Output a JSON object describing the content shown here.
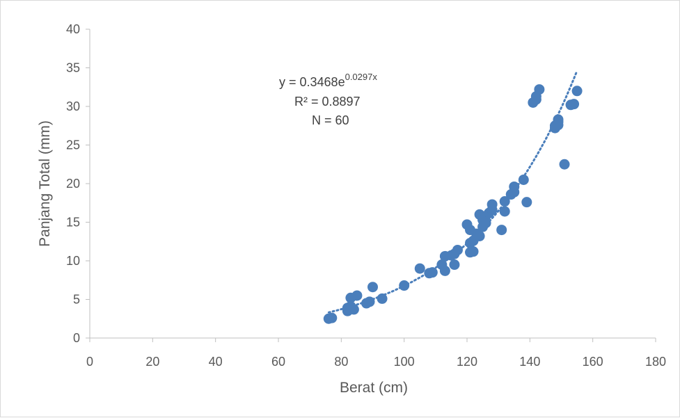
{
  "chart_data": {
    "type": "scatter",
    "xlabel": "Berat (cm)",
    "ylabel": "Panjang Total (mm)",
    "xlim": [
      0,
      180
    ],
    "ylim": [
      0,
      40
    ],
    "xticks": [
      0,
      20,
      40,
      60,
      80,
      100,
      120,
      140,
      160,
      180
    ],
    "yticks": [
      0,
      5,
      10,
      15,
      20,
      25,
      30,
      35,
      40
    ],
    "grid": false,
    "legend": "none",
    "point_color": "#4a7ebb",
    "trendline": {
      "type": "exponential",
      "a": 0.3468,
      "b": 0.0297,
      "x_range": [
        76,
        155
      ],
      "style": "dotted",
      "color": "#4a7ebb",
      "equation_base": "y = 0.3468e",
      "equation_exponent": "0.0297x",
      "r2_text": "R² = 0.8897",
      "n_text": "N = 60"
    },
    "points": [
      [
        76,
        2.5
      ],
      [
        77,
        2.6
      ],
      [
        82,
        3.5
      ],
      [
        82,
        3.9
      ],
      [
        83,
        4.1
      ],
      [
        83,
        5.2
      ],
      [
        84,
        3.7
      ],
      [
        85,
        5.5
      ],
      [
        88,
        4.5
      ],
      [
        89,
        4.7
      ],
      [
        90,
        6.6
      ],
      [
        93,
        5.1
      ],
      [
        100,
        6.8
      ],
      [
        105,
        9.0
      ],
      [
        108,
        8.4
      ],
      [
        109,
        8.5
      ],
      [
        112,
        9.5
      ],
      [
        113,
        8.7
      ],
      [
        113,
        10.6
      ],
      [
        115,
        10.7
      ],
      [
        116,
        9.5
      ],
      [
        116,
        10.9
      ],
      [
        117,
        11.4
      ],
      [
        120,
        14.7
      ],
      [
        121,
        11.1
      ],
      [
        121,
        12.3
      ],
      [
        121,
        14.0
      ],
      [
        122,
        11.2
      ],
      [
        122,
        12.6
      ],
      [
        123,
        13.5
      ],
      [
        124,
        13.2
      ],
      [
        124,
        16.0
      ],
      [
        125,
        14.4
      ],
      [
        125,
        15.3
      ],
      [
        126,
        14.9
      ],
      [
        126,
        15.8
      ],
      [
        127,
        16.2
      ],
      [
        128,
        16.6
      ],
      [
        128,
        17.3
      ],
      [
        131,
        14.0
      ],
      [
        132,
        16.4
      ],
      [
        132,
        17.7
      ],
      [
        134,
        18.6
      ],
      [
        135,
        18.9
      ],
      [
        135,
        19.6
      ],
      [
        138,
        20.5
      ],
      [
        139,
        17.6
      ],
      [
        141,
        30.5
      ],
      [
        142,
        30.9
      ],
      [
        142,
        31.3
      ],
      [
        143,
        32.2
      ],
      [
        148,
        27.2
      ],
      [
        148,
        27.5
      ],
      [
        149,
        27.6
      ],
      [
        149,
        28.0
      ],
      [
        149,
        28.3
      ],
      [
        151,
        22.5
      ],
      [
        154,
        30.3
      ],
      [
        155,
        32.0
      ],
      [
        153,
        30.2
      ]
    ]
  }
}
